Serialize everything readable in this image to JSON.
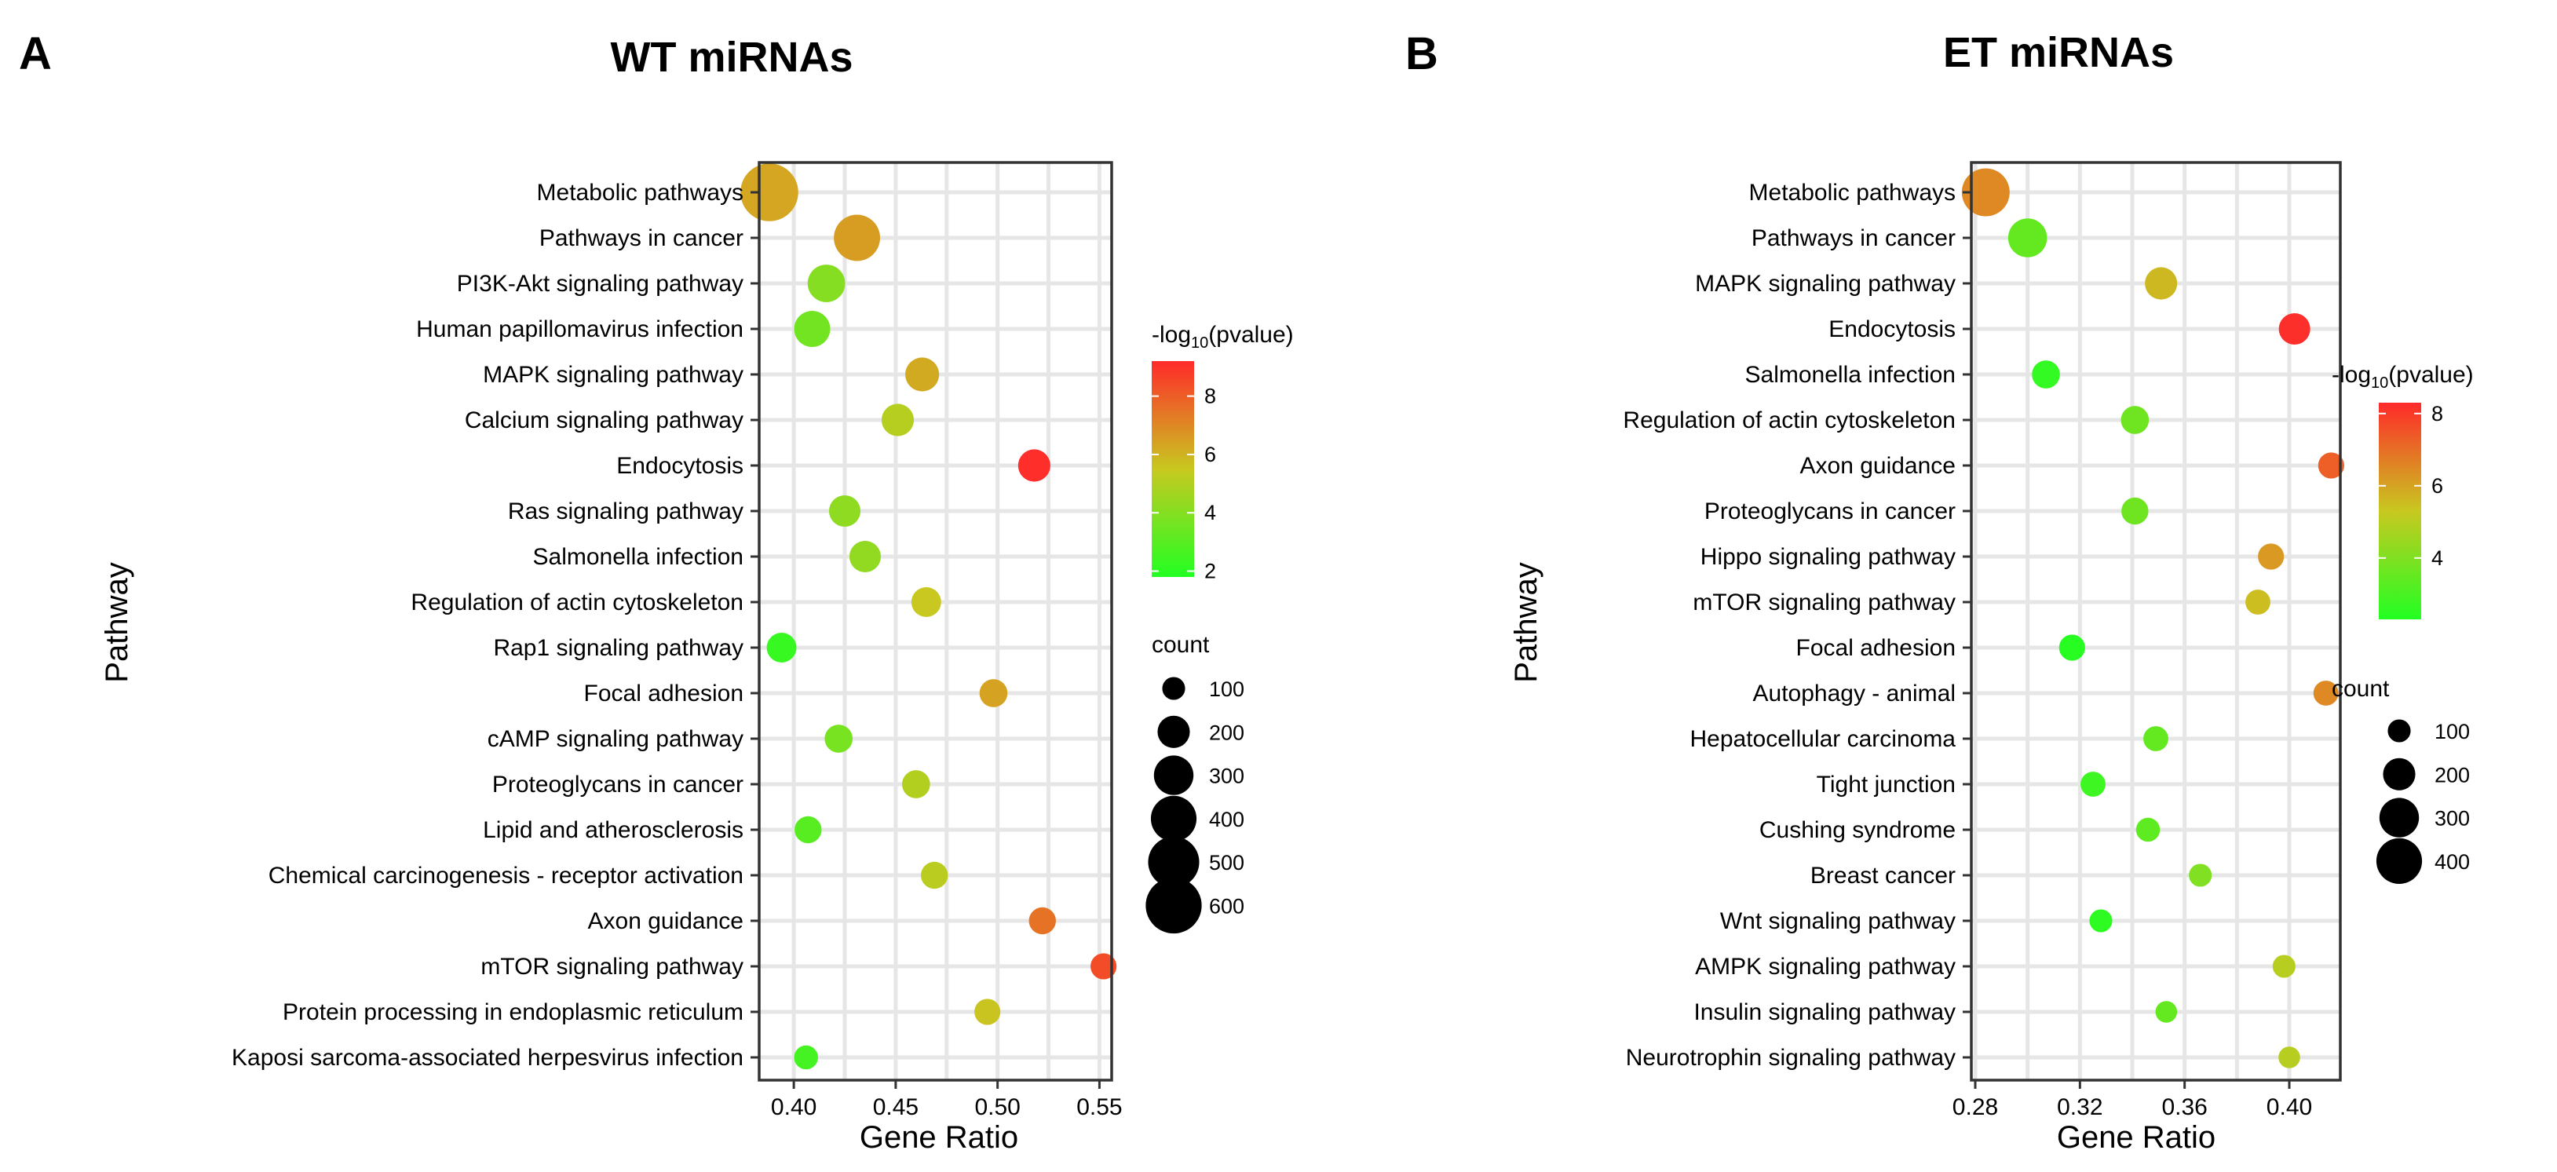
{
  "chart_data": [
    {
      "type": "scatter",
      "panel_label": "A",
      "title": "WT miRNAs",
      "xlabel": "Gene Ratio",
      "ylabel": "Pathway",
      "xlim": [
        0.383,
        0.556
      ],
      "xticks": [
        0.4,
        0.45,
        0.5,
        0.55
      ],
      "xtick_labels": [
        "0.40",
        "0.45",
        "0.50",
        "0.55"
      ],
      "color_legend": {
        "title_prefix": "-log",
        "title_sub": "10",
        "title_suffix": "(pvalue)",
        "range": [
          1.8,
          9.2
        ],
        "ticks": [
          2,
          4,
          6,
          8
        ],
        "tick_labels": [
          "2",
          "4",
          "6",
          "8"
        ],
        "low_color": "#22ff22",
        "mid_color": "#c8c820",
        "high_color": "#ff2a2a"
      },
      "size_legend": {
        "title": "count",
        "values": [
          100,
          200,
          300,
          400,
          500,
          600
        ],
        "labels": [
          "100",
          "200",
          "300",
          "400",
          "500",
          "600"
        ]
      },
      "points": [
        {
          "pathway": "Metabolic pathways",
          "gene_ratio": 0.388,
          "count": 640,
          "neglog10p": 6.3
        },
        {
          "pathway": "Pathways in cancer",
          "gene_ratio": 0.431,
          "count": 410,
          "neglog10p": 6.5
        },
        {
          "pathway": "PI3K-Akt signaling pathway",
          "gene_ratio": 0.416,
          "count": 270,
          "neglog10p": 4.0
        },
        {
          "pathway": "Human papillomavirus infection",
          "gene_ratio": 0.409,
          "count": 250,
          "neglog10p": 3.6
        },
        {
          "pathway": "MAPK signaling pathway",
          "gene_ratio": 0.463,
          "count": 220,
          "neglog10p": 6.2
        },
        {
          "pathway": "Calcium signaling pathway",
          "gene_ratio": 0.451,
          "count": 200,
          "neglog10p": 5.1
        },
        {
          "pathway": "Endocytosis",
          "gene_ratio": 0.518,
          "count": 200,
          "neglog10p": 9.1
        },
        {
          "pathway": "Ras signaling pathway",
          "gene_ratio": 0.425,
          "count": 190,
          "neglog10p": 4.2
        },
        {
          "pathway": "Salmonella infection",
          "gene_ratio": 0.435,
          "count": 190,
          "neglog10p": 4.3
        },
        {
          "pathway": "Regulation of actin cytoskeleton",
          "gene_ratio": 0.465,
          "count": 170,
          "neglog10p": 5.5
        },
        {
          "pathway": "Rap1 signaling pathway",
          "gene_ratio": 0.394,
          "count": 170,
          "neglog10p": 2.3
        },
        {
          "pathway": "Focal adhesion",
          "gene_ratio": 0.498,
          "count": 150,
          "neglog10p": 6.4
        },
        {
          "pathway": "cAMP signaling pathway",
          "gene_ratio": 0.422,
          "count": 150,
          "neglog10p": 3.7
        },
        {
          "pathway": "Proteoglycans in cancer",
          "gene_ratio": 0.46,
          "count": 150,
          "neglog10p": 5.0
        },
        {
          "pathway": "Lipid and atherosclerosis",
          "gene_ratio": 0.407,
          "count": 140,
          "neglog10p": 3.0
        },
        {
          "pathway": "Chemical carcinogenesis - receptor activation",
          "gene_ratio": 0.469,
          "count": 140,
          "neglog10p": 5.2
        },
        {
          "pathway": "Axon guidance",
          "gene_ratio": 0.522,
          "count": 140,
          "neglog10p": 7.5
        },
        {
          "pathway": "mTOR signaling pathway",
          "gene_ratio": 0.552,
          "count": 130,
          "neglog10p": 8.4
        },
        {
          "pathway": "Protein processing in endoplasmic reticulum",
          "gene_ratio": 0.495,
          "count": 130,
          "neglog10p": 5.6
        },
        {
          "pathway": "Kaposi sarcoma-associated herpesvirus infection",
          "gene_ratio": 0.406,
          "count": 110,
          "neglog10p": 2.6
        }
      ]
    },
    {
      "type": "scatter",
      "panel_label": "B",
      "title": "ET miRNAs",
      "xlabel": "Gene Ratio",
      "ylabel": "Pathway",
      "xlim": [
        0.2785,
        0.4195
      ],
      "xticks": [
        0.28,
        0.32,
        0.36,
        0.4
      ],
      "xtick_labels": [
        "0.28",
        "0.32",
        "0.36",
        "0.40"
      ],
      "color_legend": {
        "title_prefix": "-log",
        "title_sub": "10",
        "title_suffix": "(pvalue)",
        "range": [
          2.3,
          8.3
        ],
        "ticks": [
          4,
          6,
          8
        ],
        "tick_labels": [
          "4",
          "6",
          "8"
        ],
        "low_color": "#22ff22",
        "mid_color": "#c8c820",
        "high_color": "#ff2a2a"
      },
      "size_legend": {
        "title": "count",
        "values": [
          100,
          200,
          300,
          400
        ],
        "labels": [
          "100",
          "200",
          "300",
          "400"
        ]
      },
      "points": [
        {
          "pathway": "Metabolic pathways",
          "gene_ratio": 0.284,
          "count": 440,
          "neglog10p": 6.5
        },
        {
          "pathway": "Pathways in cancer",
          "gene_ratio": 0.3,
          "count": 290,
          "neglog10p": 3.5
        },
        {
          "pathway": "MAPK signaling pathway",
          "gene_ratio": 0.351,
          "count": 200,
          "neglog10p": 5.6
        },
        {
          "pathway": "Endocytosis",
          "gene_ratio": 0.402,
          "count": 190,
          "neglog10p": 8.2
        },
        {
          "pathway": "Salmonella infection",
          "gene_ratio": 0.307,
          "count": 150,
          "neglog10p": 2.6
        },
        {
          "pathway": "Regulation of actin cytoskeleton",
          "gene_ratio": 0.341,
          "count": 150,
          "neglog10p": 3.7
        },
        {
          "pathway": "Axon guidance",
          "gene_ratio": 0.416,
          "count": 130,
          "neglog10p": 7.3
        },
        {
          "pathway": "Proteoglycans in cancer",
          "gene_ratio": 0.341,
          "count": 140,
          "neglog10p": 3.7
        },
        {
          "pathway": "Hippo signaling pathway",
          "gene_ratio": 0.393,
          "count": 130,
          "neglog10p": 6.2
        },
        {
          "pathway": "mTOR signaling pathway",
          "gene_ratio": 0.388,
          "count": 120,
          "neglog10p": 5.5
        },
        {
          "pathway": "Focal adhesion",
          "gene_ratio": 0.317,
          "count": 130,
          "neglog10p": 2.4
        },
        {
          "pathway": "Autophagy - animal",
          "gene_ratio": 0.414,
          "count": 120,
          "neglog10p": 6.5
        },
        {
          "pathway": "Hepatocellular carcinoma",
          "gene_ratio": 0.349,
          "count": 120,
          "neglog10p": 3.5
        },
        {
          "pathway": "Tight junction",
          "gene_ratio": 0.325,
          "count": 120,
          "neglog10p": 2.8
        },
        {
          "pathway": "Cushing syndrome",
          "gene_ratio": 0.346,
          "count": 110,
          "neglog10p": 3.4
        },
        {
          "pathway": "Breast cancer",
          "gene_ratio": 0.366,
          "count": 100,
          "neglog10p": 4.0
        },
        {
          "pathway": "Wnt signaling pathway",
          "gene_ratio": 0.328,
          "count": 100,
          "neglog10p": 2.5
        },
        {
          "pathway": "AMPK signaling pathway",
          "gene_ratio": 0.398,
          "count": 100,
          "neglog10p": 5.0
        },
        {
          "pathway": "Insulin signaling pathway",
          "gene_ratio": 0.353,
          "count": 90,
          "neglog10p": 3.5
        },
        {
          "pathway": "Neurotrophin signaling pathway",
          "gene_ratio": 0.4,
          "count": 90,
          "neglog10p": 5.0
        }
      ]
    }
  ]
}
